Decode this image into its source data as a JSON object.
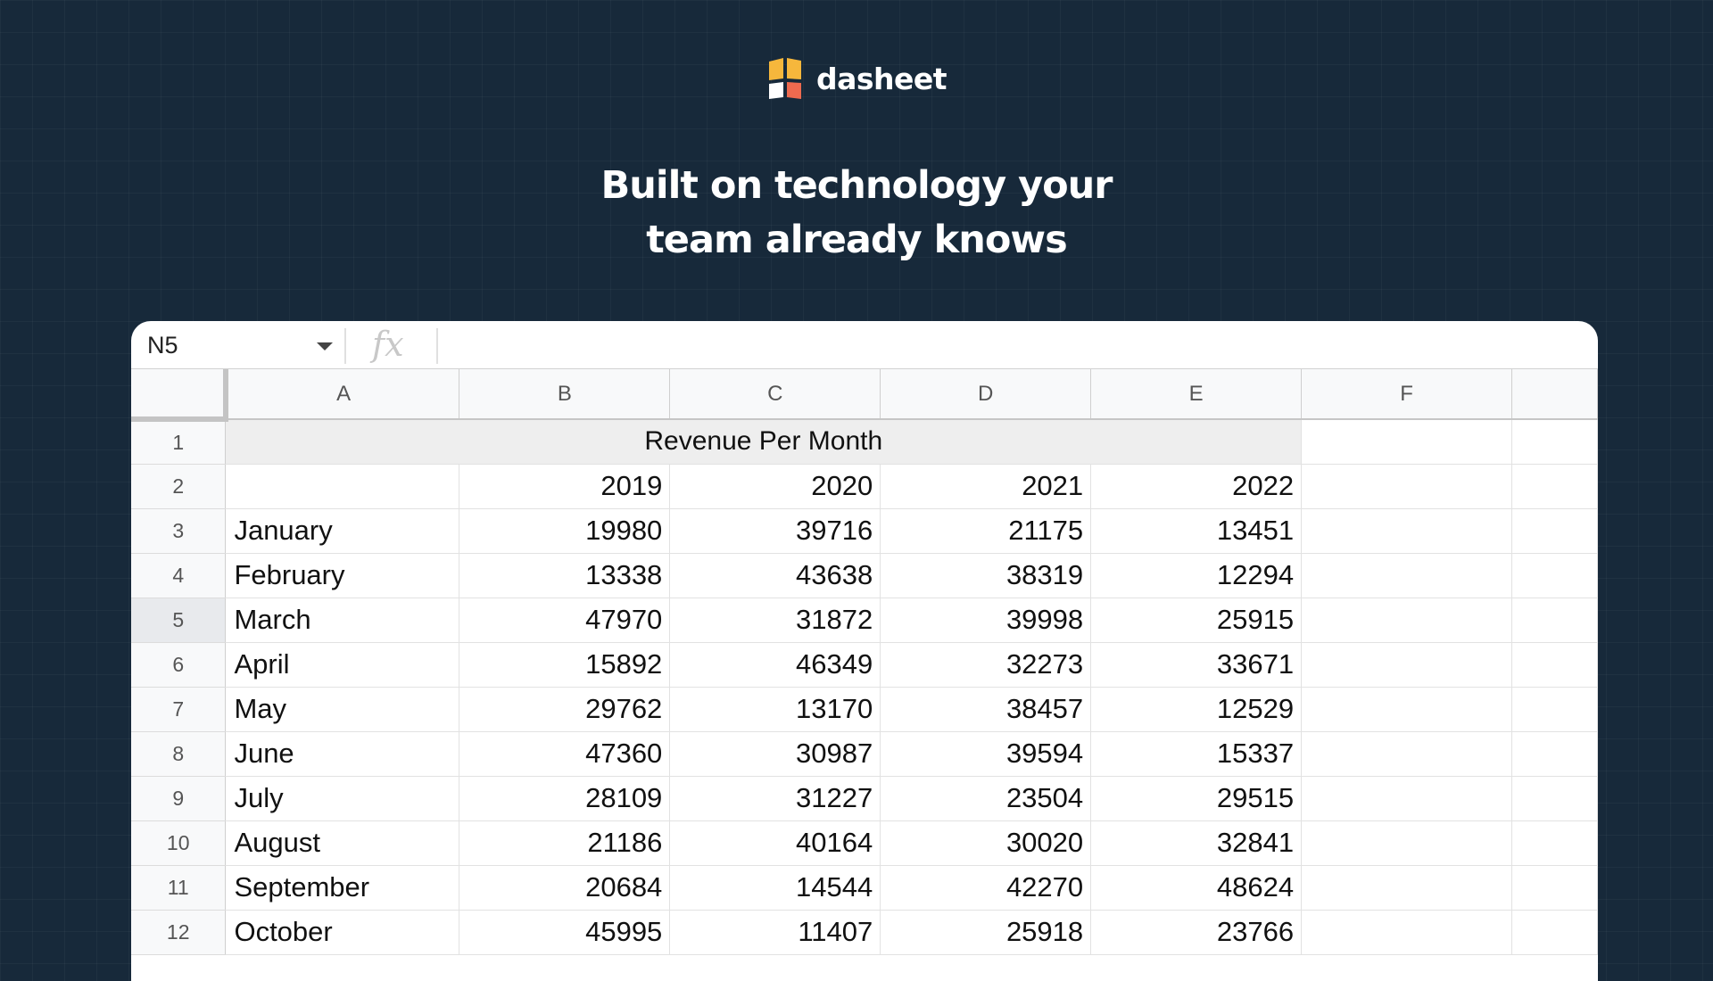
{
  "brand": {
    "name": "dasheet",
    "logo_colors": [
      "#f6b73c",
      "#ee6a4f",
      "#ffffff"
    ]
  },
  "headline": {
    "line1": "Built on technology your",
    "line2": "team already knows"
  },
  "formula_bar": {
    "cell_reference": "N5",
    "fx_label": "fx",
    "formula_value": ""
  },
  "grid": {
    "selected_row": "5",
    "column_headers": [
      "A",
      "B",
      "C",
      "D",
      "E",
      "F",
      ""
    ],
    "title": "Revenue Per Month",
    "year_headers": [
      "2019",
      "2020",
      "2021",
      "2022"
    ],
    "rows": [
      {
        "row": "1"
      },
      {
        "row": "2"
      },
      {
        "row": "3",
        "month": "January",
        "values": [
          "19980",
          "39716",
          "21175",
          "13451"
        ]
      },
      {
        "row": "4",
        "month": "February",
        "values": [
          "13338",
          "43638",
          "38319",
          "12294"
        ]
      },
      {
        "row": "5",
        "month": "March",
        "values": [
          "47970",
          "31872",
          "39998",
          "25915"
        ]
      },
      {
        "row": "6",
        "month": "April",
        "values": [
          "15892",
          "46349",
          "32273",
          "33671"
        ]
      },
      {
        "row": "7",
        "month": "May",
        "values": [
          "29762",
          "13170",
          "38457",
          "12529"
        ]
      },
      {
        "row": "8",
        "month": "June",
        "values": [
          "47360",
          "30987",
          "39594",
          "15337"
        ]
      },
      {
        "row": "9",
        "month": "July",
        "values": [
          "28109",
          "31227",
          "23504",
          "29515"
        ]
      },
      {
        "row": "10",
        "month": "August",
        "values": [
          "21186",
          "40164",
          "30020",
          "32841"
        ]
      },
      {
        "row": "11",
        "month": "September",
        "values": [
          "20684",
          "14544",
          "42270",
          "48624"
        ]
      },
      {
        "row": "12",
        "month": "October",
        "values": [
          "45995",
          "11407",
          "25918",
          "23766"
        ]
      }
    ]
  }
}
